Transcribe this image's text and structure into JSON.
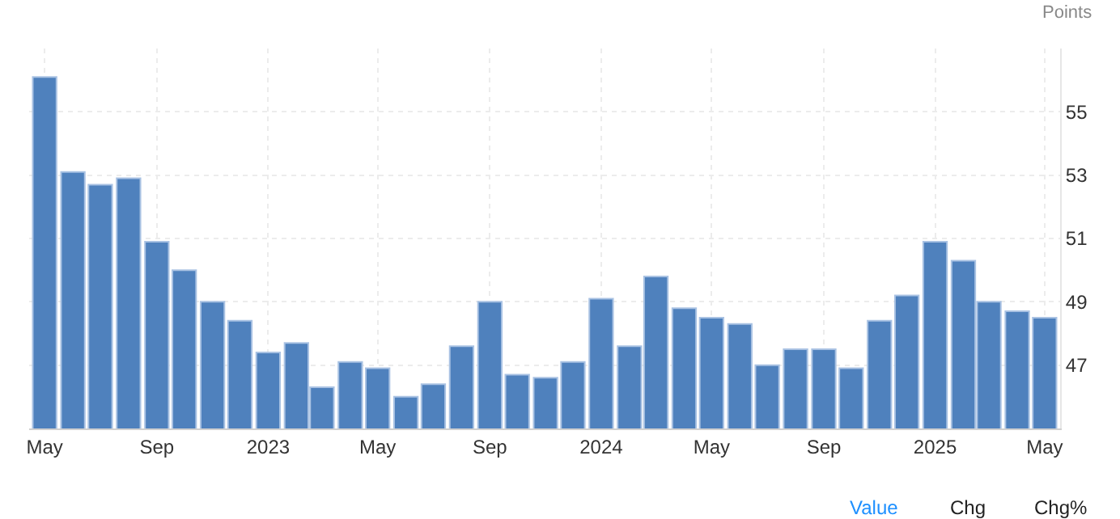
{
  "chart_data": {
    "type": "bar",
    "ylabel": "Points",
    "x": [
      "2022-05",
      "2022-06",
      "2022-07",
      "2022-08",
      "2022-09",
      "2022-10",
      "2022-11",
      "2022-12",
      "2023-01",
      "2023-02",
      "2023-03",
      "2023-04",
      "2023-05",
      "2023-06",
      "2023-07",
      "2023-08",
      "2023-09",
      "2023-10",
      "2023-11",
      "2023-12",
      "2024-01",
      "2024-02",
      "2024-03",
      "2024-04",
      "2024-05",
      "2024-06",
      "2024-07",
      "2024-08",
      "2024-09",
      "2024-10",
      "2024-11",
      "2024-12",
      "2025-01",
      "2025-02",
      "2025-03",
      "2025-04",
      "2025-05"
    ],
    "series": [
      {
        "color": "#4f81bd",
        "values": [
          56.1,
          53.1,
          52.7,
          52.9,
          50.9,
          50.0,
          49.0,
          48.4,
          47.4,
          47.7,
          46.3,
          47.1,
          46.9,
          46.0,
          46.4,
          47.6,
          49.0,
          46.7,
          46.6,
          47.1,
          49.1,
          47.6,
          49.8,
          48.8,
          48.5,
          48.3,
          47.0,
          47.5,
          47.5,
          46.9,
          48.4,
          49.2,
          50.9,
          50.3,
          49.0,
          48.7,
          48.5
        ]
      }
    ],
    "xlim": [
      "2022-04-14",
      "2025-05-18"
    ],
    "xticks": [
      {
        "value": "2022-05",
        "label": "May"
      },
      {
        "value": "2022-09",
        "label": "Sep"
      },
      {
        "value": "2023-01",
        "label": "2023"
      },
      {
        "value": "2023-05",
        "label": "May"
      },
      {
        "value": "2023-09",
        "label": "Sep"
      },
      {
        "value": "2024-01",
        "label": "2024"
      },
      {
        "value": "2024-05",
        "label": "May"
      },
      {
        "value": "2024-09",
        "label": "Sep"
      },
      {
        "value": "2025-01",
        "label": "2025"
      },
      {
        "value": "2025-05",
        "label": "May"
      }
    ],
    "ylim": [
      45,
      57
    ],
    "yticks": [
      47,
      49,
      51,
      53,
      55
    ],
    "grid": true,
    "annotations": [
      "Value",
      "Chg",
      "Chg%"
    ]
  }
}
